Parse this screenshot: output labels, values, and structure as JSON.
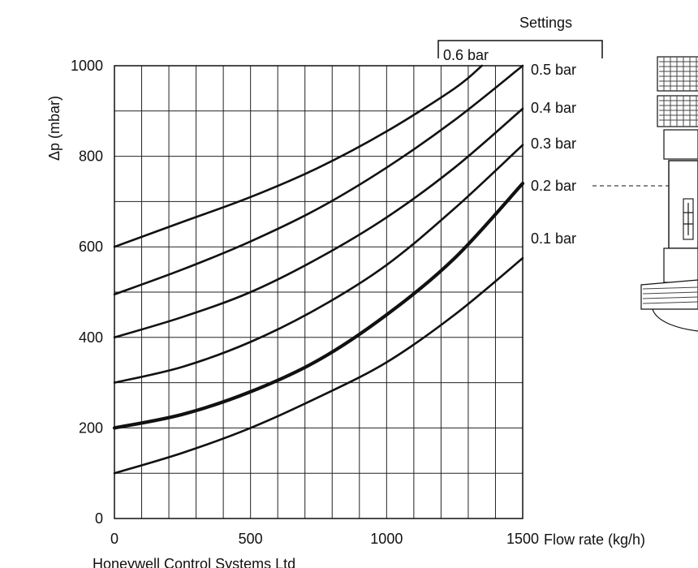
{
  "chart_data": {
    "type": "line",
    "title": "",
    "xlabel": "Flow rate (kg/h)",
    "ylabel": "Δp (mbar)",
    "xlim": [
      0,
      1500
    ],
    "ylim": [
      0,
      1000
    ],
    "x_ticks": [
      0,
      500,
      1000,
      1500
    ],
    "y_ticks": [
      0,
      200,
      400,
      600,
      800,
      1000
    ],
    "x_minor_step": 100,
    "y_minor_step": 100,
    "grid": true,
    "settings_label": "Settings",
    "series": [
      {
        "name": "0.1 bar",
        "stroke_width": 2.6,
        "x": [
          0,
          250,
          500,
          750,
          1000,
          1250,
          1500
        ],
        "y": [
          100,
          145,
          200,
          268,
          345,
          450,
          575
        ]
      },
      {
        "name": "0.2 bar",
        "stroke_width": 4.2,
        "x": [
          0,
          250,
          500,
          750,
          1000,
          1250,
          1500
        ],
        "y": [
          200,
          230,
          280,
          350,
          450,
          575,
          740
        ]
      },
      {
        "name": "0.3 bar",
        "stroke_width": 2.6,
        "x": [
          0,
          250,
          500,
          750,
          1000,
          1250,
          1500
        ],
        "y": [
          300,
          335,
          390,
          465,
          560,
          685,
          825
        ]
      },
      {
        "name": "0.4 bar",
        "stroke_width": 2.6,
        "x": [
          0,
          250,
          500,
          750,
          1000,
          1250,
          1500
        ],
        "y": [
          400,
          445,
          500,
          575,
          665,
          775,
          905
        ]
      },
      {
        "name": "0.5 bar",
        "stroke_width": 2.6,
        "x": [
          0,
          250,
          500,
          750,
          1000,
          1250,
          1500
        ],
        "y": [
          495,
          550,
          612,
          685,
          775,
          880,
          1000
        ]
      },
      {
        "name": "0.6 bar",
        "stroke_width": 2.6,
        "x": [
          0,
          250,
          500,
          750,
          1000,
          1250,
          1350
        ],
        "y": [
          600,
          655,
          710,
          775,
          855,
          950,
          1000
        ]
      }
    ],
    "highlighted_series": "0.2 bar",
    "illustration": "valve-illustration"
  }
}
